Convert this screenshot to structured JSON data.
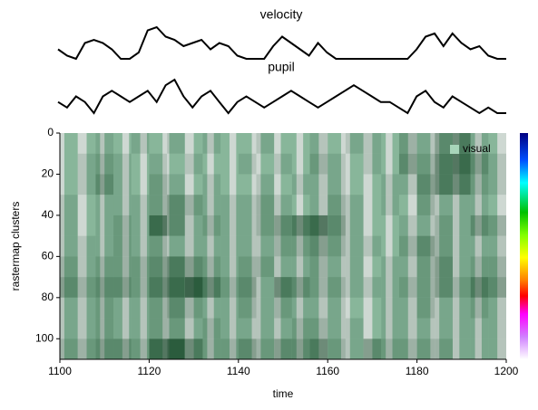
{
  "chart_data": [
    {
      "type": "line",
      "title": "velocity",
      "color": "#000000",
      "x": [
        1100,
        1102,
        1104,
        1106,
        1108,
        1110,
        1112,
        1114,
        1116,
        1118,
        1120,
        1122,
        1124,
        1126,
        1128,
        1130,
        1132,
        1134,
        1136,
        1138,
        1140,
        1142,
        1144,
        1146,
        1148,
        1150,
        1152,
        1154,
        1156,
        1158,
        1160,
        1162,
        1164,
        1166,
        1168,
        1170,
        1172,
        1174,
        1176,
        1178,
        1180,
        1182,
        1184,
        1186,
        1188,
        1190,
        1192,
        1194,
        1196,
        1198,
        1200
      ],
      "values": [
        0.3,
        0.1,
        0,
        0.5,
        0.6,
        0.5,
        0.3,
        0,
        0,
        0.2,
        0.9,
        1.0,
        0.7,
        0.6,
        0.4,
        0.5,
        0.6,
        0.3,
        0.5,
        0.4,
        0.1,
        0,
        0,
        0,
        0.4,
        0.7,
        0.5,
        0.3,
        0.1,
        0.5,
        0.2,
        0,
        0,
        0,
        0,
        0,
        0,
        0,
        0,
        0,
        0.3,
        0.7,
        0.8,
        0.4,
        0.8,
        0.5,
        0.3,
        0.4,
        0.1,
        0,
        0
      ]
    },
    {
      "type": "line",
      "title": "pupil",
      "color": "#000000",
      "x": [
        1100,
        1102,
        1104,
        1106,
        1108,
        1110,
        1112,
        1114,
        1116,
        1118,
        1120,
        1122,
        1124,
        1126,
        1128,
        1130,
        1132,
        1134,
        1136,
        1138,
        1140,
        1142,
        1144,
        1146,
        1148,
        1150,
        1152,
        1154,
        1156,
        1158,
        1160,
        1162,
        1164,
        1166,
        1168,
        1170,
        1172,
        1174,
        1176,
        1178,
        1180,
        1182,
        1184,
        1186,
        1188,
        1190,
        1192,
        1194,
        1196,
        1198,
        1200
      ],
      "values": [
        0.5,
        0.4,
        0.6,
        0.5,
        0.3,
        0.6,
        0.7,
        0.6,
        0.5,
        0.6,
        0.7,
        0.5,
        0.8,
        0.9,
        0.6,
        0.4,
        0.6,
        0.7,
        0.5,
        0.3,
        0.5,
        0.6,
        0.5,
        0.4,
        0.5,
        0.6,
        0.7,
        0.6,
        0.5,
        0.4,
        0.5,
        0.6,
        0.7,
        0.8,
        0.7,
        0.6,
        0.5,
        0.5,
        0.4,
        0.3,
        0.6,
        0.7,
        0.5,
        0.4,
        0.6,
        0.5,
        0.4,
        0.3,
        0.4,
        0.3,
        0.3
      ]
    },
    {
      "type": "heatmap",
      "xlabel": "time",
      "ylabel": "rastermap clusters",
      "xlim": [
        1100,
        1200
      ],
      "ylim": [
        0,
        110
      ],
      "y_inverted": true,
      "xticks": [
        1100,
        1120,
        1140,
        1160,
        1180,
        1200
      ],
      "yticks": [
        0,
        20,
        40,
        60,
        80,
        100
      ],
      "color": "#0b3d1e",
      "legend": "upper right",
      "x_bins": [
        1100,
        1104,
        1108,
        1112,
        1116,
        1120,
        1124,
        1128,
        1132,
        1136,
        1140,
        1144,
        1148,
        1152,
        1156,
        1160,
        1164,
        1168,
        1172,
        1176,
        1180,
        1184,
        1188,
        1192,
        1196,
        1200
      ],
      "y_bins": [
        0,
        10,
        20,
        30,
        40,
        50,
        60,
        70,
        80,
        90,
        100,
        110
      ],
      "values": [
        [
          0.2,
          0.2,
          0.3,
          0.2,
          0.3,
          0.2,
          0.3,
          0.2,
          0.3,
          0.2,
          0.2,
          0.3,
          0.2,
          0.2,
          0.3,
          0.2,
          0.3,
          0.3,
          0.2,
          0.4,
          0.3,
          0.5,
          0.6,
          0.3,
          0.2
        ],
        [
          0.2,
          0.3,
          0.4,
          0.3,
          0.2,
          0.3,
          0.2,
          0.3,
          0.2,
          0.2,
          0.3,
          0.2,
          0.3,
          0.2,
          0.4,
          0.3,
          0.2,
          0.3,
          0.2,
          0.5,
          0.4,
          0.6,
          0.7,
          0.5,
          0.3
        ],
        [
          0.2,
          0.3,
          0.5,
          0.3,
          0.2,
          0.4,
          0.3,
          0.2,
          0.3,
          0.2,
          0.2,
          0.3,
          0.2,
          0.3,
          0.3,
          0.3,
          0.2,
          0.2,
          0.3,
          0.3,
          0.5,
          0.6,
          0.6,
          0.4,
          0.3
        ],
        [
          0.3,
          0.2,
          0.3,
          0.3,
          0.3,
          0.4,
          0.5,
          0.4,
          0.3,
          0.3,
          0.3,
          0.4,
          0.3,
          0.2,
          0.3,
          0.4,
          0.3,
          0.2,
          0.3,
          0.2,
          0.4,
          0.3,
          0.3,
          0.3,
          0.2
        ],
        [
          0.3,
          0.2,
          0.3,
          0.4,
          0.3,
          0.7,
          0.5,
          0.3,
          0.4,
          0.3,
          0.3,
          0.4,
          0.5,
          0.6,
          0.7,
          0.5,
          0.3,
          0.2,
          0.2,
          0.3,
          0.3,
          0.4,
          0.3,
          0.5,
          0.4
        ],
        [
          0.3,
          0.3,
          0.3,
          0.4,
          0.3,
          0.4,
          0.3,
          0.3,
          0.3,
          0.3,
          0.3,
          0.3,
          0.4,
          0.4,
          0.5,
          0.4,
          0.3,
          0.3,
          0.2,
          0.4,
          0.5,
          0.4,
          0.3,
          0.3,
          0.3
        ],
        [
          0.4,
          0.3,
          0.4,
          0.4,
          0.4,
          0.5,
          0.6,
          0.5,
          0.4,
          0.3,
          0.4,
          0.4,
          0.3,
          0.3,
          0.4,
          0.3,
          0.3,
          0.2,
          0.3,
          0.3,
          0.4,
          0.5,
          0.3,
          0.4,
          0.4
        ],
        [
          0.5,
          0.4,
          0.5,
          0.5,
          0.4,
          0.6,
          0.7,
          0.8,
          0.6,
          0.4,
          0.5,
          0.3,
          0.6,
          0.5,
          0.4,
          0.4,
          0.3,
          0.3,
          0.3,
          0.4,
          0.4,
          0.5,
          0.4,
          0.6,
          0.5
        ],
        [
          0.3,
          0.3,
          0.4,
          0.3,
          0.3,
          0.4,
          0.5,
          0.4,
          0.3,
          0.3,
          0.4,
          0.3,
          0.4,
          0.3,
          0.3,
          0.3,
          0.2,
          0.2,
          0.3,
          0.3,
          0.4,
          0.3,
          0.3,
          0.4,
          0.3
        ],
        [
          0.3,
          0.3,
          0.4,
          0.3,
          0.3,
          0.4,
          0.4,
          0.3,
          0.4,
          0.3,
          0.3,
          0.3,
          0.3,
          0.4,
          0.4,
          0.3,
          0.3,
          0.2,
          0.3,
          0.3,
          0.3,
          0.3,
          0.3,
          0.3,
          0.3
        ],
        [
          0.4,
          0.4,
          0.5,
          0.5,
          0.4,
          0.7,
          0.8,
          0.6,
          0.4,
          0.4,
          0.5,
          0.4,
          0.5,
          0.5,
          0.6,
          0.4,
          0.3,
          0.5,
          0.4,
          0.4,
          0.4,
          0.4,
          0.3,
          0.3,
          0.3
        ]
      ],
      "series": [
        {
          "name": "visual",
          "color": "#a8d5ba",
          "intervals": [
            [
              1101,
              1104
            ],
            [
              1106,
              1109
            ],
            [
              1110,
              1114
            ],
            [
              1115.5,
              1118
            ],
            [
              1119.5,
              1123
            ],
            [
              1124.5,
              1128
            ],
            [
              1130,
              1133
            ],
            [
              1134.5,
              1138
            ],
            [
              1139.5,
              1143
            ],
            [
              1145,
              1148
            ],
            [
              1149.5,
              1153
            ],
            [
              1154.5,
              1158
            ],
            [
              1160,
              1163
            ],
            [
              1165,
              1168
            ],
            [
              1170,
              1173
            ],
            [
              1174.5,
              1178
            ],
            [
              1180,
              1183
            ],
            [
              1185,
              1188
            ],
            [
              1189.5,
              1193
            ],
            [
              1194.5,
              1198
            ]
          ]
        }
      ]
    }
  ]
}
